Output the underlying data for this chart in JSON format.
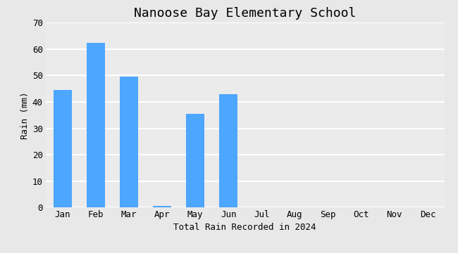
{
  "title": "Nanoose Bay Elementary School",
  "xlabel": "Total Rain Recorded in 2024",
  "ylabel": "Rain (mm)",
  "categories": [
    "Jan",
    "Feb",
    "Mar",
    "Apr",
    "May",
    "Jun",
    "Jul",
    "Aug",
    "Sep",
    "Oct",
    "Nov",
    "Dec"
  ],
  "values": [
    44.5,
    62.5,
    49.5,
    0.5,
    35.5,
    43.0,
    0,
    0,
    0,
    0,
    0,
    0
  ],
  "bar_color": "#4da6ff",
  "ylim": [
    0,
    70
  ],
  "yticks": [
    0,
    10,
    20,
    30,
    40,
    50,
    60,
    70
  ],
  "background_color": "#e8e8e8",
  "plot_bg_color": "#ebebeb",
  "title_fontsize": 13,
  "label_fontsize": 9,
  "tick_fontsize": 9,
  "grid_color": "#ffffff",
  "grid_lw": 1.5
}
